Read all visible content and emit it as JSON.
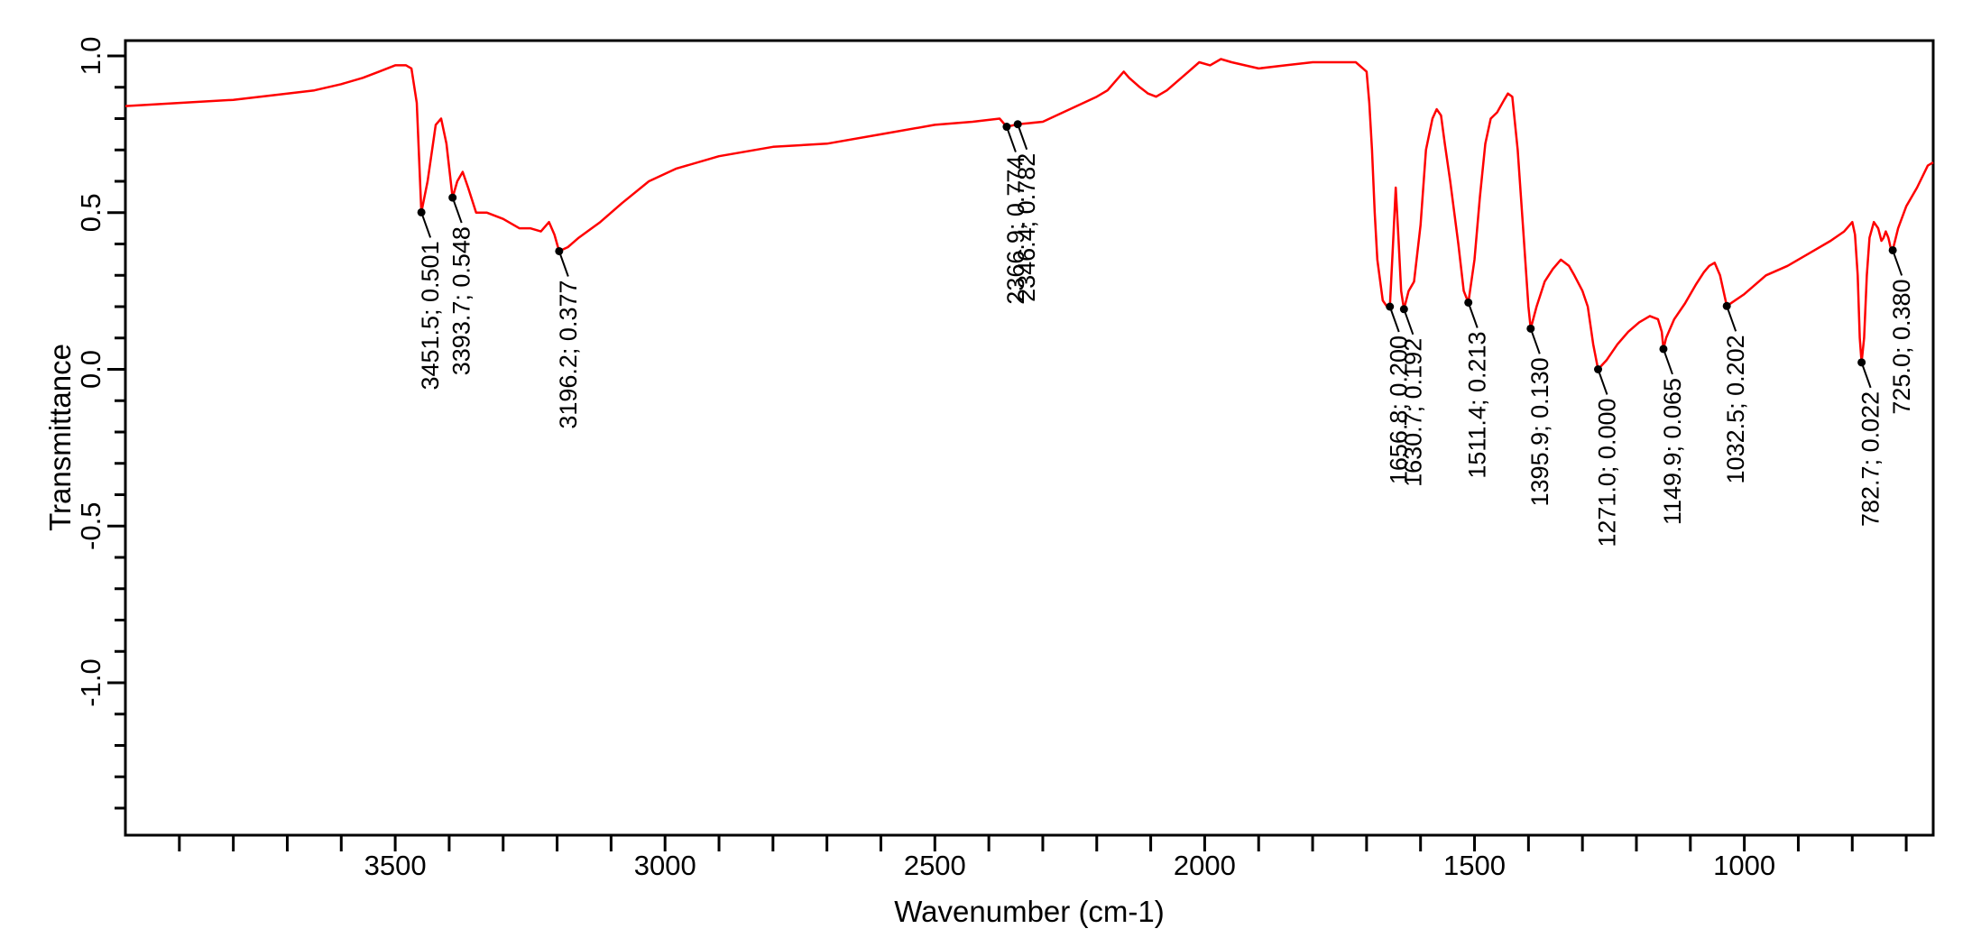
{
  "chart_data": {
    "type": "line",
    "title": "",
    "xlabel": "Wavenumber (cm-1)",
    "ylabel": "Transmittance",
    "xlim": [
      4000,
      650
    ],
    "ylim": [
      -1.5,
      1.05
    ],
    "x_reversed": true,
    "grid": false,
    "legend": "none",
    "x_ticks": [
      3500,
      3000,
      2500,
      2000,
      1500,
      1000
    ],
    "x_tick_labels": [
      "3500",
      "3000",
      "2500",
      "2000",
      "1500",
      "1000"
    ],
    "y_ticks": [
      1.0,
      0.5,
      0.0,
      -0.5,
      -1.0
    ],
    "y_tick_labels": [
      "1.0",
      "0.5",
      "0.0",
      "-0.5",
      "-1.0"
    ],
    "line_color": "#ff0000",
    "series": [
      {
        "x": [
          4000,
          3900,
          3800,
          3700,
          3650,
          3600,
          3560,
          3530,
          3500,
          3480,
          3470,
          3460,
          3451.5,
          3440,
          3425,
          3415,
          3405,
          3393.7,
          3385,
          3375,
          3365,
          3350,
          3330,
          3300,
          3270,
          3250,
          3230,
          3215,
          3205,
          3196.2,
          3180,
          3160,
          3120,
          3080,
          3030,
          2980,
          2900,
          2800,
          2700,
          2600,
          2500,
          2430,
          2380,
          2366.9,
          2346.4,
          2300,
          2250,
          2200,
          2180,
          2165,
          2150,
          2140,
          2120,
          2105,
          2090,
          2070,
          2050,
          2030,
          2010,
          1990,
          1970,
          1950,
          1900,
          1850,
          1800,
          1760,
          1720,
          1700,
          1695,
          1690,
          1685,
          1680,
          1670,
          1662,
          1656.8,
          1651,
          1646,
          1641,
          1636,
          1630.7,
          1622,
          1612,
          1600,
          1590,
          1578,
          1570,
          1562,
          1555,
          1545,
          1530,
          1520,
          1511.4,
          1500,
          1490,
          1480,
          1470,
          1458,
          1445,
          1438,
          1430,
          1420,
          1410,
          1400,
          1395.9,
          1385,
          1370,
          1355,
          1340,
          1325,
          1315,
          1300,
          1290,
          1280,
          1271.0,
          1255,
          1235,
          1215,
          1195,
          1175,
          1160,
          1153,
          1149.9,
          1145,
          1130,
          1110,
          1090,
          1075,
          1065,
          1055,
          1045,
          1032.5,
          1000,
          960,
          920,
          880,
          840,
          815,
          800,
          795,
          790,
          786,
          782.7,
          778,
          773,
          768,
          760,
          752,
          746,
          742,
          738,
          733,
          729,
          725.0,
          715,
          700,
          680,
          660,
          650
        ],
        "y": [
          0.84,
          0.85,
          0.86,
          0.88,
          0.89,
          0.91,
          0.93,
          0.95,
          0.97,
          0.97,
          0.96,
          0.85,
          0.501,
          0.6,
          0.78,
          0.8,
          0.72,
          0.548,
          0.6,
          0.63,
          0.58,
          0.5,
          0.5,
          0.48,
          0.45,
          0.45,
          0.44,
          0.47,
          0.43,
          0.377,
          0.39,
          0.42,
          0.47,
          0.53,
          0.6,
          0.64,
          0.68,
          0.71,
          0.72,
          0.75,
          0.78,
          0.79,
          0.8,
          0.774,
          0.782,
          0.79,
          0.83,
          0.87,
          0.89,
          0.92,
          0.95,
          0.93,
          0.9,
          0.88,
          0.87,
          0.89,
          0.92,
          0.95,
          0.98,
          0.97,
          0.99,
          0.98,
          0.96,
          0.97,
          0.98,
          0.98,
          0.98,
          0.95,
          0.85,
          0.7,
          0.5,
          0.35,
          0.22,
          0.2,
          0.2,
          0.4,
          0.58,
          0.42,
          0.25,
          0.192,
          0.25,
          0.28,
          0.46,
          0.7,
          0.8,
          0.83,
          0.81,
          0.72,
          0.6,
          0.4,
          0.25,
          0.213,
          0.35,
          0.55,
          0.72,
          0.8,
          0.82,
          0.86,
          0.88,
          0.87,
          0.7,
          0.45,
          0.2,
          0.13,
          0.2,
          0.28,
          0.32,
          0.35,
          0.33,
          0.3,
          0.25,
          0.2,
          0.08,
          0.0,
          0.03,
          0.08,
          0.12,
          0.15,
          0.17,
          0.16,
          0.12,
          0.065,
          0.1,
          0.16,
          0.21,
          0.27,
          0.31,
          0.33,
          0.34,
          0.3,
          0.202,
          0.24,
          0.3,
          0.33,
          0.37,
          0.41,
          0.44,
          0.47,
          0.43,
          0.3,
          0.1,
          0.022,
          0.1,
          0.3,
          0.42,
          0.47,
          0.45,
          0.41,
          0.42,
          0.44,
          0.42,
          0.39,
          0.38,
          0.45,
          0.52,
          0.58,
          0.65,
          0.66
        ]
      }
    ],
    "annotations": [
      {
        "x": 3451.5,
        "y": 0.501,
        "label": "3451.5; 0.501"
      },
      {
        "x": 3393.7,
        "y": 0.548,
        "label": "3393.7; 0.548"
      },
      {
        "x": 3196.2,
        "y": 0.377,
        "label": "3196.2; 0.377"
      },
      {
        "x": 2366.9,
        "y": 0.774,
        "label": "2366.9; 0.774"
      },
      {
        "x": 2346.4,
        "y": 0.782,
        "label": "2346.4; 0.782"
      },
      {
        "x": 1656.8,
        "y": 0.2,
        "label": "1656.8; 0.200"
      },
      {
        "x": 1630.7,
        "y": 0.192,
        "label": "1630.7; 0.192"
      },
      {
        "x": 1511.4,
        "y": 0.213,
        "label": "1511.4; 0.213"
      },
      {
        "x": 1395.9,
        "y": 0.13,
        "label": "1395.9; 0.130"
      },
      {
        "x": 1271.0,
        "y": 0.0,
        "label": "1271.0; 0.000"
      },
      {
        "x": 1149.9,
        "y": 0.065,
        "label": "1149.9; 0.065"
      },
      {
        "x": 1032.5,
        "y": 0.202,
        "label": "1032.5; 0.202"
      },
      {
        "x": 782.7,
        "y": 0.022,
        "label": "782.7; 0.022"
      },
      {
        "x": 725.0,
        "y": 0.38,
        "label": "725.0; 0.380"
      }
    ]
  }
}
